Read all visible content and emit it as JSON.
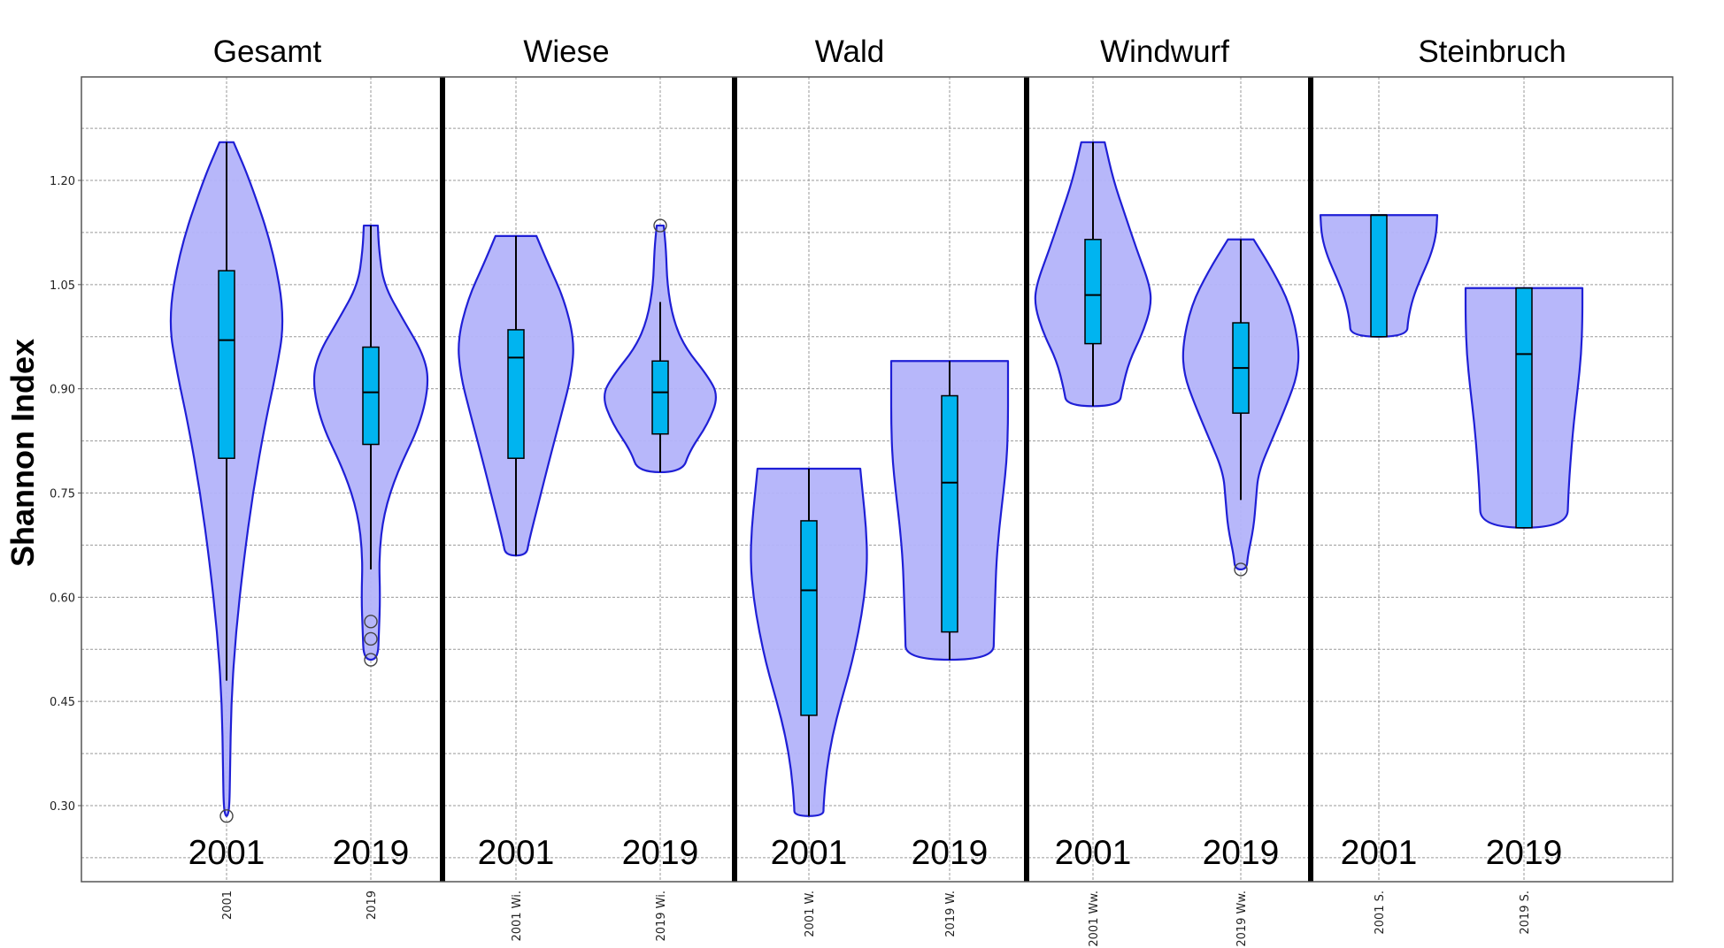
{
  "chart_data": {
    "type": "violin",
    "ylabel": "Shannon Index",
    "ylim": [
      0.19,
      1.39
    ],
    "yticks": [
      "1.20",
      "1.05",
      "0.90",
      "0.75",
      "0.60",
      "0.45",
      "0.30"
    ],
    "grid": true,
    "colors": {
      "violin_fill": "#b3b3fa",
      "violin_edge": "#1f1fd6",
      "box_fill": "#00b4f0",
      "grid": "#9a9a9a",
      "separator": "#000000"
    },
    "groups": [
      {
        "title": "Gesamt",
        "violins": [
          {
            "year": "2001",
            "xtick": "2001",
            "min": 0.285,
            "q1": 0.8,
            "median": 0.97,
            "q3": 1.07,
            "max": 1.255,
            "whisker_low": 0.48,
            "whisker_high": 1.255,
            "outliers": [
              0.285
            ],
            "profile": [
              [
                1.255,
                0.12
              ],
              [
                1.2,
                0.4
              ],
              [
                1.1,
                0.8
              ],
              [
                1.0,
                1.0
              ],
              [
                0.92,
                0.84
              ],
              [
                0.85,
                0.66
              ],
              [
                0.75,
                0.45
              ],
              [
                0.65,
                0.29
              ],
              [
                0.55,
                0.16
              ],
              [
                0.45,
                0.08
              ],
              [
                0.35,
                0.06
              ],
              [
                0.3,
                0.05
              ],
              [
                0.285,
                0.02
              ]
            ]
          },
          {
            "year": "2019",
            "xtick": "2019",
            "min": 0.51,
            "q1": 0.82,
            "median": 0.895,
            "q3": 0.96,
            "max": 1.135,
            "whisker_low": 0.64,
            "whisker_high": 1.135,
            "outliers": [
              0.565,
              0.54,
              0.51
            ],
            "profile": [
              [
                1.135,
                0.12
              ],
              [
                1.1,
                0.14
              ],
              [
                1.05,
                0.22
              ],
              [
                1.0,
                0.55
              ],
              [
                0.95,
                0.9
              ],
              [
                0.91,
                1.0
              ],
              [
                0.85,
                0.85
              ],
              [
                0.78,
                0.45
              ],
              [
                0.72,
                0.22
              ],
              [
                0.66,
                0.14
              ],
              [
                0.6,
                0.16
              ],
              [
                0.55,
                0.14
              ],
              [
                0.51,
                0.12
              ]
            ]
          }
        ]
      },
      {
        "title": "Wiese",
        "violins": [
          {
            "year": "2001",
            "xtick": "2001 Wi.",
            "min": 0.66,
            "q1": 0.8,
            "median": 0.945,
            "q3": 0.985,
            "max": 1.12,
            "whisker_low": 0.66,
            "whisker_high": 1.12,
            "outliers": [],
            "profile": [
              [
                1.12,
                0.35
              ],
              [
                1.08,
                0.55
              ],
              [
                1.03,
                0.82
              ],
              [
                0.97,
                1.0
              ],
              [
                0.92,
                0.95
              ],
              [
                0.87,
                0.8
              ],
              [
                0.8,
                0.58
              ],
              [
                0.74,
                0.4
              ],
              [
                0.68,
                0.22
              ],
              [
                0.66,
                0.18
              ]
            ]
          },
          {
            "year": "2019",
            "xtick": "2019 Wi.",
            "min": 0.78,
            "q1": 0.835,
            "median": 0.895,
            "q3": 0.94,
            "max": 1.135,
            "whisker_low": 0.78,
            "whisker_high": 1.025,
            "outliers": [
              1.135
            ],
            "profile": [
              [
                1.135,
                0.06
              ],
              [
                1.1,
                0.1
              ],
              [
                1.05,
                0.12
              ],
              [
                1.0,
                0.22
              ],
              [
                0.96,
                0.42
              ],
              [
                0.92,
                0.8
              ],
              [
                0.89,
                1.0
              ],
              [
                0.85,
                0.82
              ],
              [
                0.81,
                0.5
              ],
              [
                0.78,
                0.38
              ]
            ]
          }
        ]
      },
      {
        "title": "Wald",
        "violins": [
          {
            "year": "2001",
            "xtick": "2001 W.",
            "min": 0.285,
            "q1": 0.43,
            "median": 0.61,
            "q3": 0.71,
            "max": 0.785,
            "whisker_low": 0.285,
            "whisker_high": 0.785,
            "outliers": [],
            "profile": [
              [
                0.785,
                0.88
              ],
              [
                0.75,
                0.92
              ],
              [
                0.7,
                0.98
              ],
              [
                0.65,
                1.0
              ],
              [
                0.6,
                0.95
              ],
              [
                0.55,
                0.85
              ],
              [
                0.5,
                0.72
              ],
              [
                0.45,
                0.55
              ],
              [
                0.4,
                0.4
              ],
              [
                0.35,
                0.3
              ],
              [
                0.3,
                0.25
              ],
              [
                0.285,
                0.25
              ]
            ]
          },
          {
            "year": "2019",
            "xtick": "2019 W.",
            "min": 0.51,
            "q1": 0.55,
            "median": 0.765,
            "q3": 0.89,
            "max": 0.94,
            "whisker_low": 0.51,
            "whisker_high": 0.94,
            "outliers": [],
            "profile": [
              [
                0.94,
                1.0
              ],
              [
                0.9,
                1.0
              ],
              [
                0.85,
                1.0
              ],
              [
                0.8,
                0.98
              ],
              [
                0.75,
                0.92
              ],
              [
                0.7,
                0.85
              ],
              [
                0.65,
                0.8
              ],
              [
                0.6,
                0.78
              ],
              [
                0.55,
                0.76
              ],
              [
                0.51,
                0.75
              ]
            ]
          }
        ]
      },
      {
        "title": "Windwurf",
        "violins": [
          {
            "year": "2001",
            "xtick": "2001 Ww.",
            "min": 0.875,
            "q1": 0.965,
            "median": 1.035,
            "q3": 1.115,
            "max": 1.255,
            "whisker_low": 0.875,
            "whisker_high": 1.255,
            "outliers": [],
            "profile": [
              [
                1.255,
                0.2
              ],
              [
                1.2,
                0.35
              ],
              [
                1.15,
                0.55
              ],
              [
                1.1,
                0.75
              ],
              [
                1.05,
                0.97
              ],
              [
                1.02,
                1.0
              ],
              [
                0.98,
                0.85
              ],
              [
                0.94,
                0.62
              ],
              [
                0.9,
                0.5
              ],
              [
                0.875,
                0.45
              ]
            ]
          },
          {
            "year": "2019",
            "xtick": "2019 Ww.",
            "min": 0.64,
            "q1": 0.865,
            "median": 0.93,
            "q3": 0.995,
            "max": 1.115,
            "whisker_low": 0.74,
            "whisker_high": 1.115,
            "outliers": [
              0.64
            ],
            "profile": [
              [
                1.115,
                0.22
              ],
              [
                1.07,
                0.55
              ],
              [
                1.02,
                0.85
              ],
              [
                0.96,
                1.0
              ],
              [
                0.92,
                0.97
              ],
              [
                0.88,
                0.8
              ],
              [
                0.83,
                0.55
              ],
              [
                0.78,
                0.3
              ],
              [
                0.74,
                0.26
              ],
              [
                0.7,
                0.22
              ],
              [
                0.66,
                0.12
              ],
              [
                0.64,
                0.1
              ]
            ]
          }
        ]
      },
      {
        "title": "Steinbruch",
        "violins": [
          {
            "year": "2001",
            "xtick": "2001 S.",
            "min": 0.975,
            "q1": 0.975,
            "median": 1.15,
            "q3": 1.15,
            "max": 1.15,
            "whisker_low": 0.975,
            "whisker_high": 1.15,
            "outliers": [],
            "profile": [
              [
                1.15,
                1.0
              ],
              [
                1.12,
                0.98
              ],
              [
                1.09,
                0.88
              ],
              [
                1.06,
                0.72
              ],
              [
                1.03,
                0.58
              ],
              [
                1.0,
                0.5
              ],
              [
                0.975,
                0.48
              ]
            ]
          },
          {
            "year": "2019",
            "xtick": "2019 S.",
            "min": 0.7,
            "q1": 0.7,
            "median": 0.95,
            "q3": 1.045,
            "max": 1.045,
            "whisker_low": 0.7,
            "whisker_high": 1.045,
            "outliers": [],
            "profile": [
              [
                1.045,
                1.0
              ],
              [
                1.0,
                1.0
              ],
              [
                0.95,
                0.98
              ],
              [
                0.9,
                0.92
              ],
              [
                0.85,
                0.85
              ],
              [
                0.8,
                0.8
              ],
              [
                0.75,
                0.76
              ],
              [
                0.7,
                0.74
              ]
            ]
          }
        ]
      }
    ]
  }
}
